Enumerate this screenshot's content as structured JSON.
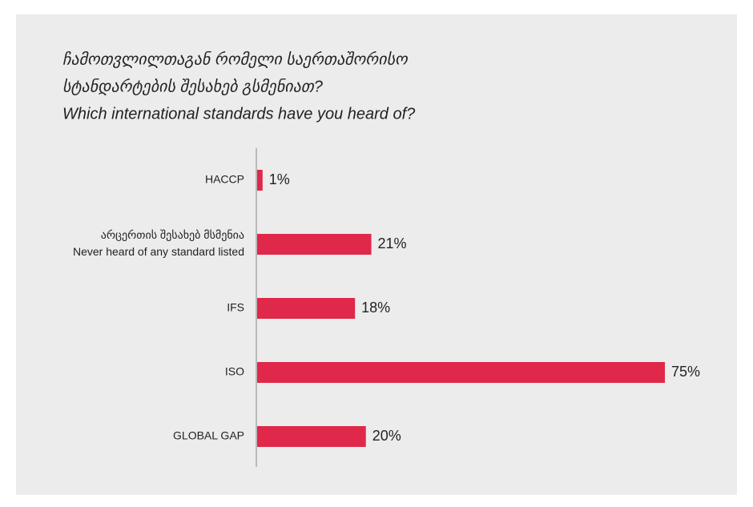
{
  "chart_data": {
    "type": "barh",
    "title": [
      "ჩამოთვლილთაგან რომელი საერთაშორისო",
      "სტანდარტების შესახებ გსმენიათ?",
      "Which international standards have you heard of?"
    ],
    "categories": [
      [
        "HACCP"
      ],
      [
        "არცერთის შესახებ მსმენია",
        "Never heard of any standard listed"
      ],
      [
        "IFS"
      ],
      [
        "ISO"
      ],
      [
        "GLOBAL GAP"
      ]
    ],
    "values": [
      1,
      21,
      18,
      75,
      20
    ],
    "value_labels": [
      "1%",
      "21%",
      "18%",
      "75%",
      "20%"
    ],
    "color": "#e0284a"
  }
}
